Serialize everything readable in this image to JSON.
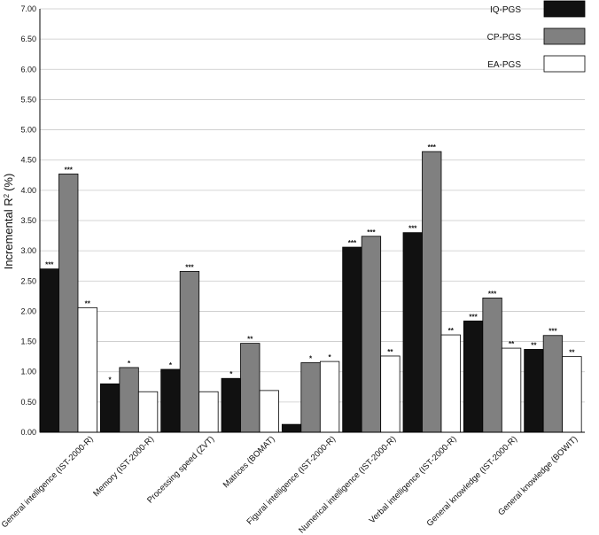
{
  "chart_data": {
    "type": "bar",
    "title": "",
    "xlabel": "",
    "ylabel": "Incremental R",
    "ylabel_sup": "2",
    "ylabel_unit": "(%)",
    "ylim": [
      0,
      7
    ],
    "yticks": [
      "0.00",
      "0.50",
      "1.00",
      "1.50",
      "2.00",
      "2.50",
      "3.00",
      "3.50",
      "4.00",
      "4.50",
      "5.00",
      "5.50",
      "6.00",
      "6.50",
      "7.00"
    ],
    "grid": true,
    "legend_position": "top-right",
    "categories": [
      "General intelligence (IST-2000-R)",
      "Memory (IST-2000-R)",
      "Processing speed (ZVT)",
      "Matrices (BOMAT)",
      "Figural intelligence  (IST-2000-R)",
      "Numerical intelligence (IST-2000-R)",
      "Verbal intelligence (IST-2000-R)",
      "General knowledge (IST-2000-R)",
      "General knowledge (BOWIT)"
    ],
    "series": [
      {
        "name": "IQ-PGS",
        "color": "#111111",
        "values": [
          2.7,
          0.8,
          1.04,
          0.89,
          0.13,
          3.06,
          3.3,
          1.84,
          1.37
        ],
        "sig": [
          "***",
          "*",
          "*",
          "*",
          "",
          "***",
          "***",
          "***",
          "**"
        ]
      },
      {
        "name": "CP-PGS",
        "color": "#808080",
        "values": [
          4.27,
          1.07,
          2.66,
          1.47,
          1.15,
          3.24,
          4.64,
          2.22,
          1.6
        ],
        "sig": [
          "***",
          "*",
          "***",
          "**",
          "*",
          "***",
          "***",
          "***",
          "***"
        ]
      },
      {
        "name": "EA-PGS",
        "color": "#ffffff",
        "values": [
          2.06,
          0.67,
          0.67,
          0.69,
          1.17,
          1.26,
          1.61,
          1.39,
          1.25
        ],
        "sig": [
          "**",
          "",
          "",
          "",
          "*",
          "**",
          "**",
          "**",
          "**"
        ]
      }
    ]
  }
}
